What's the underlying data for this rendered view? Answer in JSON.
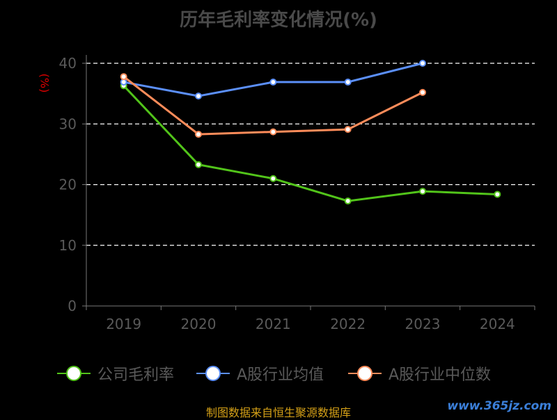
{
  "chart_data": {
    "type": "line",
    "title": "历年毛利率变化情况(%)",
    "ylabel": "(%)",
    "categories": [
      "2019",
      "2020",
      "2021",
      "2022",
      "2023",
      "2024"
    ],
    "ylim": [
      0,
      40
    ],
    "yticks": [
      0,
      10,
      20,
      30,
      40
    ],
    "grid": true,
    "legend_position": "bottom",
    "series": [
      {
        "name": "公司毛利率",
        "color": "#52c41a",
        "values": [
          36.3,
          23.3,
          21.0,
          17.3,
          18.9,
          18.4
        ]
      },
      {
        "name": "A股行业均值",
        "color": "#5b8ff9",
        "values": [
          36.9,
          34.6,
          36.9,
          36.9,
          40.0,
          null
        ]
      },
      {
        "name": "A股行业中位数",
        "color": "#ff8c5a",
        "values": [
          37.8,
          28.3,
          28.7,
          29.1,
          35.2,
          null
        ]
      }
    ]
  },
  "footer": {
    "source": "制图数据来自恒生聚源数据库",
    "watermark": "www.365jz.com"
  }
}
